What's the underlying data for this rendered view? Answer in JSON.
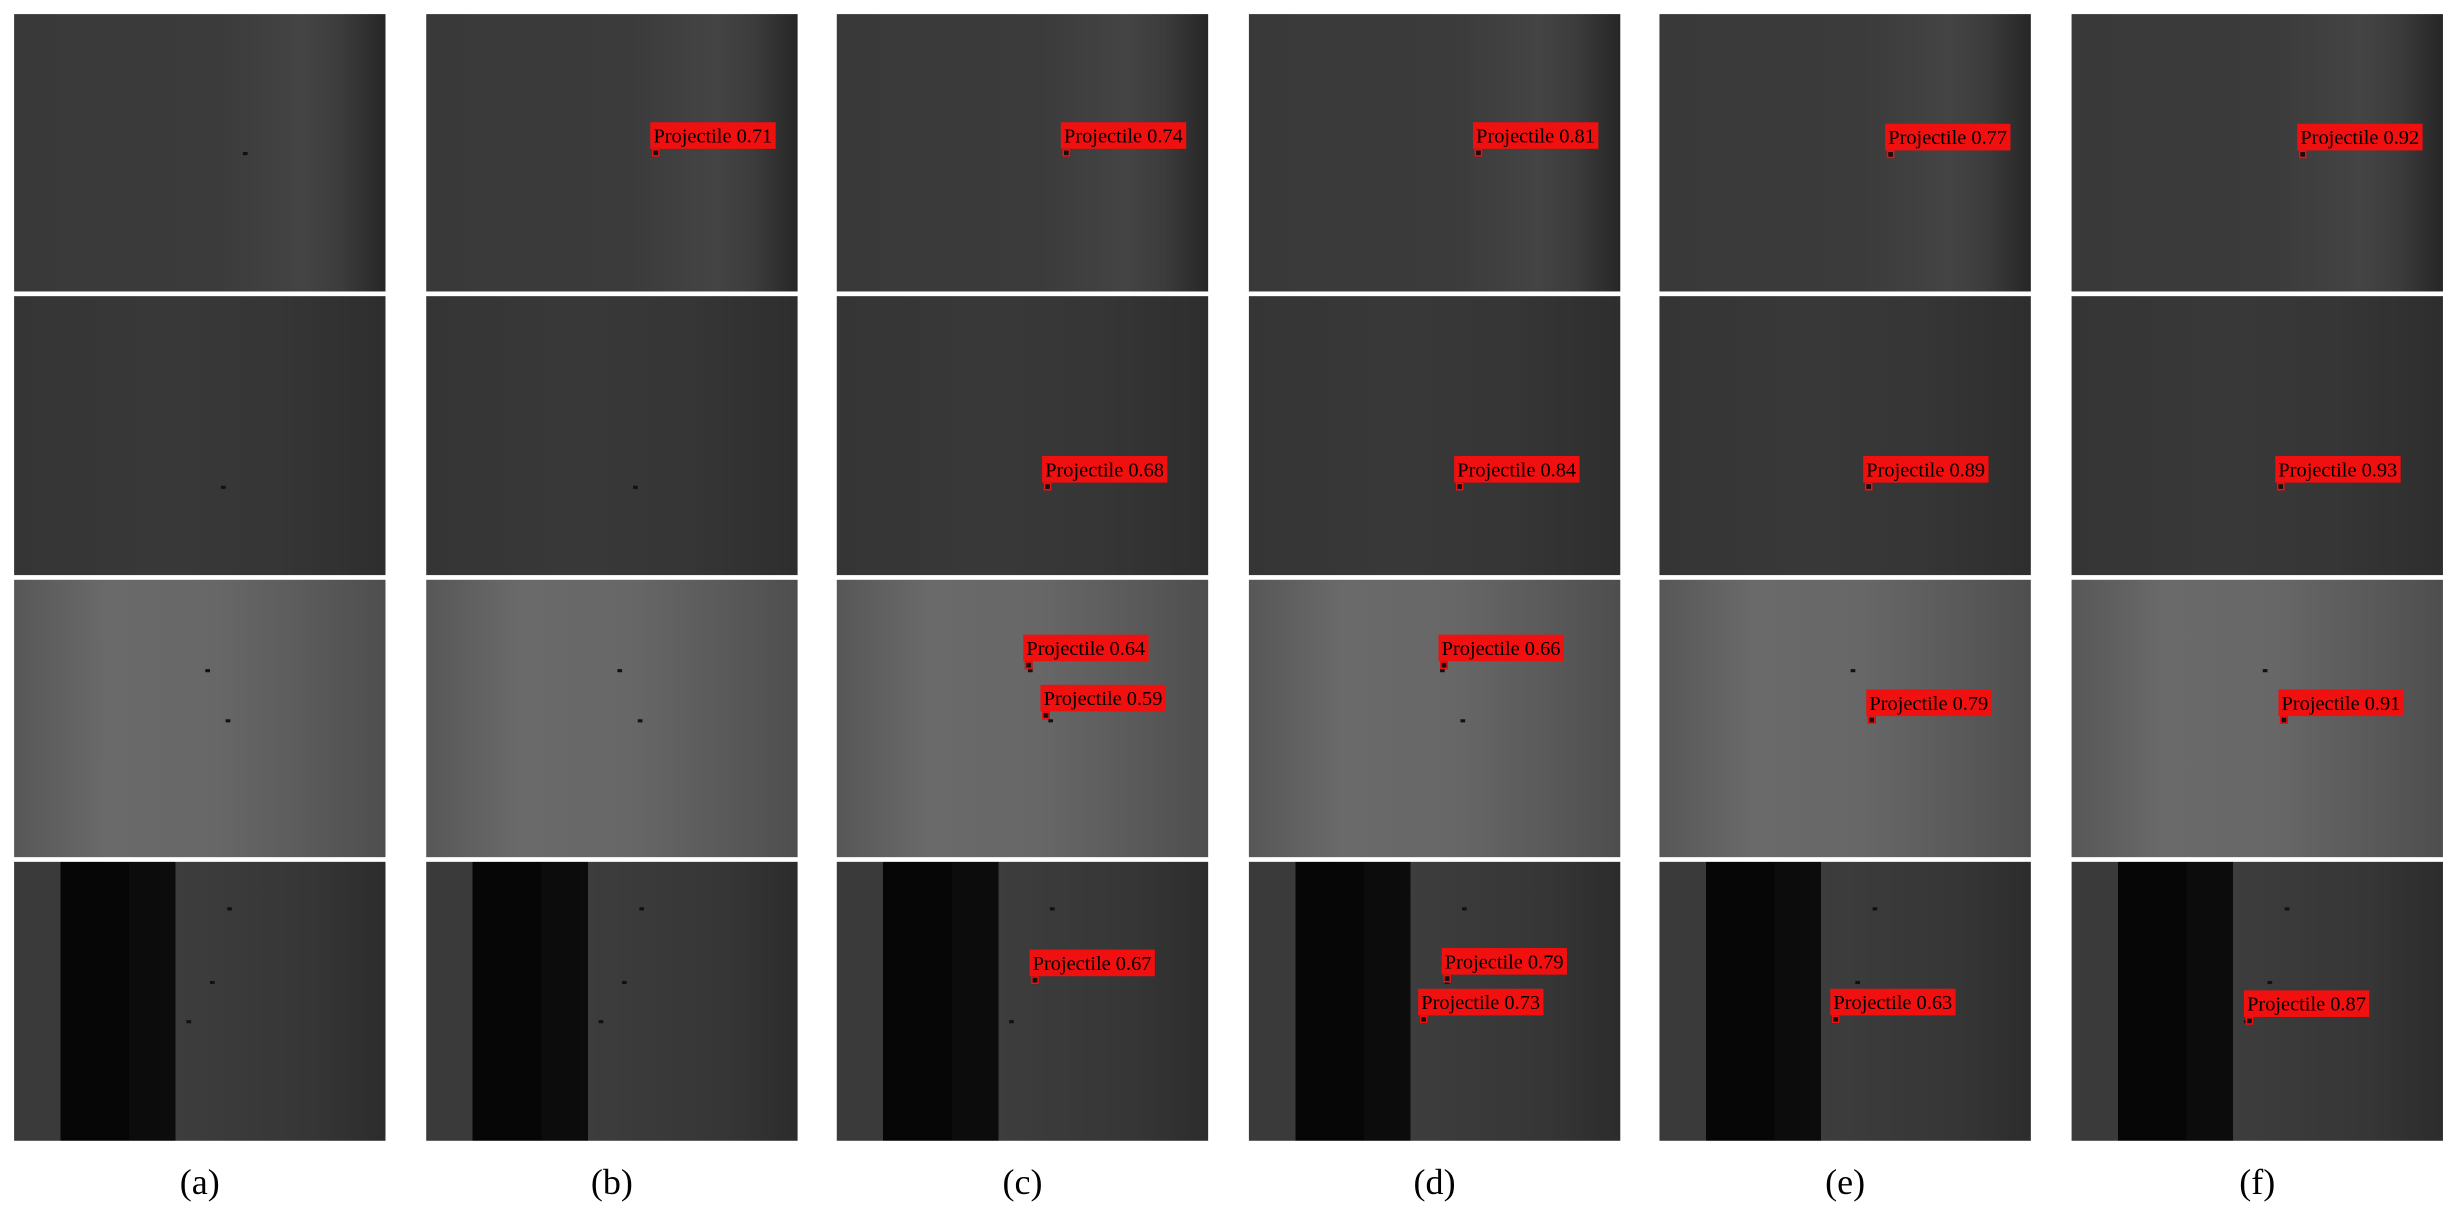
{
  "panels": [
    {
      "label": "(a)",
      "frames": [
        [],
        [],
        [],
        []
      ]
    },
    {
      "label": "(b)",
      "frames": [
        [
          "Projectile 0.71"
        ],
        [],
        [],
        []
      ]
    },
    {
      "label": "(c)",
      "frames": [
        [
          "Projectile 0.74"
        ],
        [
          "Projectile 0.68"
        ],
        [
          "Projectile 0.64",
          "Projectile 0.59"
        ],
        [
          "Projectile 0.67"
        ]
      ]
    },
    {
      "label": "(d)",
      "frames": [
        [
          "Projectile 0.81"
        ],
        [
          "Projectile 0.84"
        ],
        [
          "Projectile 0.66"
        ],
        [
          "Projectile 0.79",
          "Projectile 0.73"
        ]
      ]
    },
    {
      "label": "(e)",
      "frames": [
        [
          "Projectile 0.77"
        ],
        [
          "Projectile 0.89"
        ],
        [
          "Projectile 0.79"
        ],
        [
          "Projectile 0.63"
        ]
      ]
    },
    {
      "label": "(f)",
      "frames": [
        [
          "Projectile 0.92"
        ],
        [
          "Projectile 0.93"
        ],
        [
          "Projectile 0.91"
        ],
        [
          "Projectile 0.87"
        ]
      ]
    }
  ]
}
